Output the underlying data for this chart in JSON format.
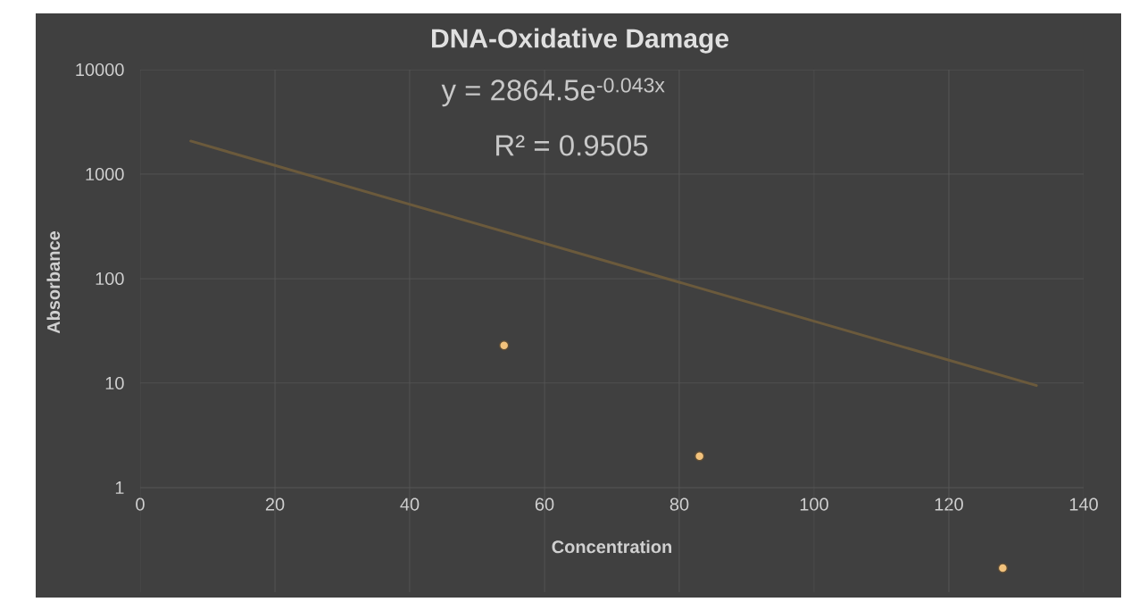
{
  "chart_data": {
    "type": "scatter",
    "title": "DNA-Oxidative Damage",
    "xlabel": "Concentration",
    "ylabel": "Absorbance",
    "annotations": [
      "y = 2864.5e$^{-0.043x}$",
      "R² = 0.9505"
    ],
    "series": [
      {
        "color": "#f2c27c",
        "marker": "circle",
        "x": [
          54,
          83,
          128
        ],
        "values": [
          23,
          2,
          0.17
        ]
      },
      {
        "type": "line",
        "color": "#6b5a3c",
        "marker": "none",
        "x": [
          7.5,
          133
        ],
        "values": [
          2074,
          9.5
        ]
      }
    ],
    "xlim": [
      0,
      140
    ],
    "ylim": [
      0.1,
      10000
    ],
    "xticks": [
      0,
      20,
      40,
      60,
      80,
      100,
      120,
      140
    ],
    "yticks": [
      1,
      10,
      100,
      1000,
      10000
    ],
    "log": true,
    "grid": true
  }
}
